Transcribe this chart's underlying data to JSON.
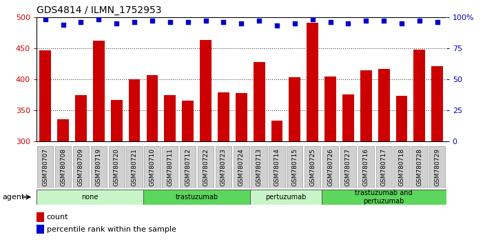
{
  "title": "GDS4814 / ILMN_1752953",
  "samples": [
    "GSM780707",
    "GSM780708",
    "GSM780709",
    "GSM780719",
    "GSM780720",
    "GSM780721",
    "GSM780710",
    "GSM780711",
    "GSM780712",
    "GSM780722",
    "GSM780723",
    "GSM780724",
    "GSM780713",
    "GSM780714",
    "GSM780715",
    "GSM780725",
    "GSM780726",
    "GSM780727",
    "GSM780716",
    "GSM780717",
    "GSM780718",
    "GSM780728",
    "GSM780729"
  ],
  "counts": [
    447,
    336,
    375,
    462,
    367,
    400,
    407,
    375,
    366,
    463,
    379,
    378,
    428,
    334,
    403,
    491,
    405,
    376,
    415,
    417,
    374,
    448,
    421
  ],
  "percentiles": [
    98,
    94,
    96,
    98,
    95,
    96,
    97,
    96,
    96,
    97,
    96,
    95,
    97,
    93,
    95,
    98,
    96,
    95,
    97,
    97,
    95,
    97,
    96
  ],
  "groups": [
    {
      "label": "none",
      "start": 0,
      "end": 5,
      "color": "#c8f5c8"
    },
    {
      "label": "trastuzumab",
      "start": 6,
      "end": 11,
      "color": "#5cd65c"
    },
    {
      "label": "pertuzumab",
      "start": 12,
      "end": 15,
      "color": "#c8f5c8"
    },
    {
      "label": "trastuzumab and\npertuzumab",
      "start": 16,
      "end": 22,
      "color": "#5cd65c"
    }
  ],
  "ylim_left": [
    300,
    500
  ],
  "ylim_right": [
    0,
    100
  ],
  "yticks_left": [
    300,
    350,
    400,
    450,
    500
  ],
  "yticks_right": [
    0,
    25,
    50,
    75,
    100
  ],
  "bar_color": "#cc0000",
  "dot_color": "#0000cc",
  "grid_color": "#404040",
  "bg_color": "#ffffff",
  "tick_label_color_left": "#cc0000",
  "tick_label_color_right": "#0000cc",
  "agent_label": "agent",
  "legend_count_label": "count",
  "legend_pct_label": "percentile rank within the sample",
  "tick_box_color": "#d0d0d0",
  "tick_box_edge_color": "#888888"
}
